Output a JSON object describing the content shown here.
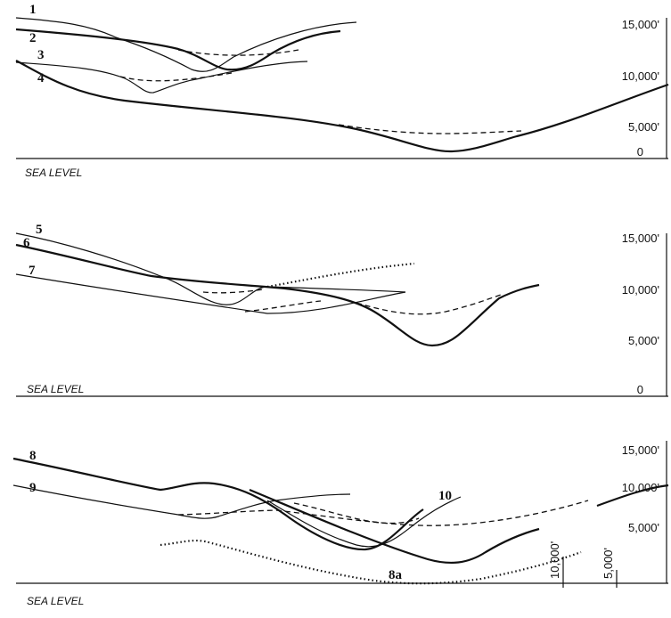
{
  "panels": [
    {
      "curve_labels": [
        "1",
        "2",
        "3",
        "4"
      ],
      "sea_level": "SEA LEVEL",
      "scale_labels": [
        "15,000'",
        "10,000'",
        "5,000'",
        "0"
      ]
    },
    {
      "curve_labels": [
        "5",
        "6",
        "7"
      ],
      "sea_level": "SEA LEVEL",
      "scale_labels": [
        "15,000'",
        "10,000'",
        "5,000'",
        "0"
      ]
    },
    {
      "curve_labels": [
        "8",
        "9",
        "10",
        "8a"
      ],
      "sea_level": "SEA LEVEL",
      "scale_labels": [
        "15,000'",
        "10,000'",
        "5,000'"
      ],
      "inset_scale_labels": [
        "10,000'",
        "5,000'"
      ]
    }
  ]
}
